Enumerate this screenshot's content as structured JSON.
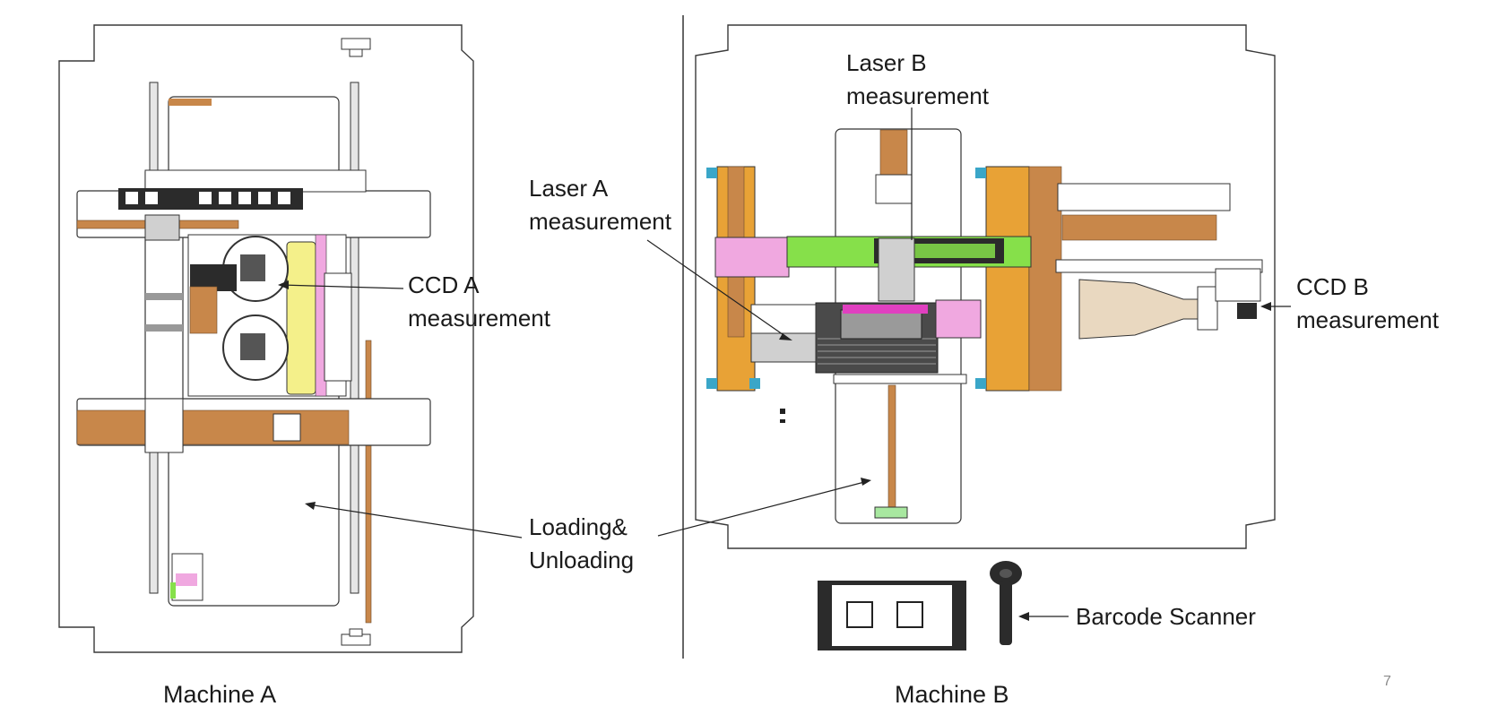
{
  "labels": {
    "laser_b_line1": "Laser B",
    "laser_b_line2": "measurement",
    "laser_a_line1": "Laser A",
    "laser_a_line2": "measurement",
    "ccd_a_line1": "CCD A",
    "ccd_a_line2": "measurement",
    "ccd_b_line1": "CCD B",
    "ccd_b_line2": "measurement",
    "loading_line1": "Loading&",
    "loading_line2": "Unloading",
    "barcode_scanner": "Barcode Scanner"
  },
  "captions": {
    "machine_a": "Machine A",
    "machine_b": "Machine B"
  },
  "page_number": "7",
  "colors": {
    "outline": "#3a3a3a",
    "copper": "#c8874a",
    "orange": "#e8a236",
    "green": "#86e04a",
    "pink": "#f0a8e0",
    "yellow": "#f4f08a",
    "lightgray": "#d9d9d9",
    "dark": "#2b2b2b"
  }
}
